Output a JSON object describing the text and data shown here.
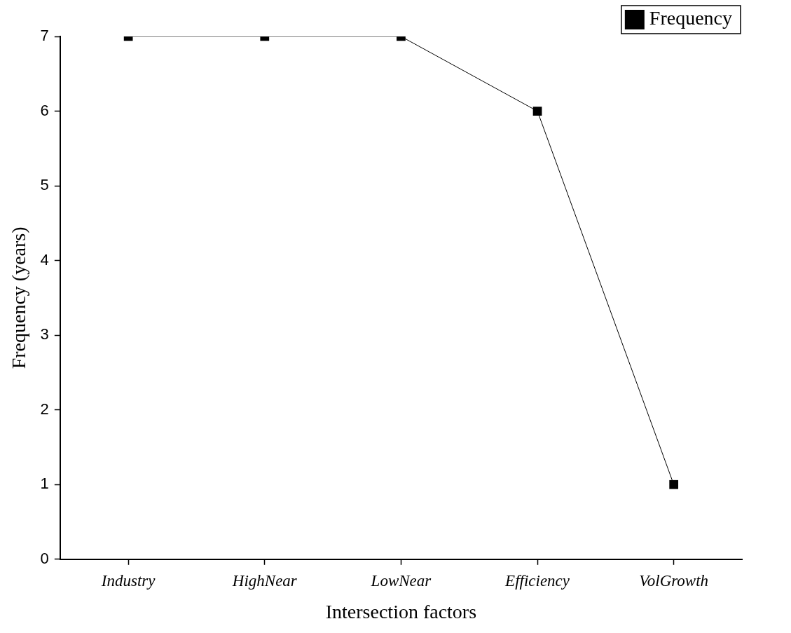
{
  "chart_data": {
    "type": "line",
    "xlabel": "Intersection factors",
    "ylabel": "Frequency (years)",
    "categories": [
      "Industry",
      "HighNear",
      "LowNear",
      "Efficiency",
      "VolGrowth"
    ],
    "series": [
      {
        "name": "Frequency",
        "color": "#000000",
        "values": [
          7,
          7,
          7,
          6,
          1
        ]
      }
    ],
    "ylim": [
      0,
      7
    ],
    "yticks": [
      0,
      1,
      2,
      3,
      4,
      5,
      6,
      7
    ],
    "grid": false,
    "legend": "top right",
    "marker": "square",
    "line_style": "solid"
  }
}
